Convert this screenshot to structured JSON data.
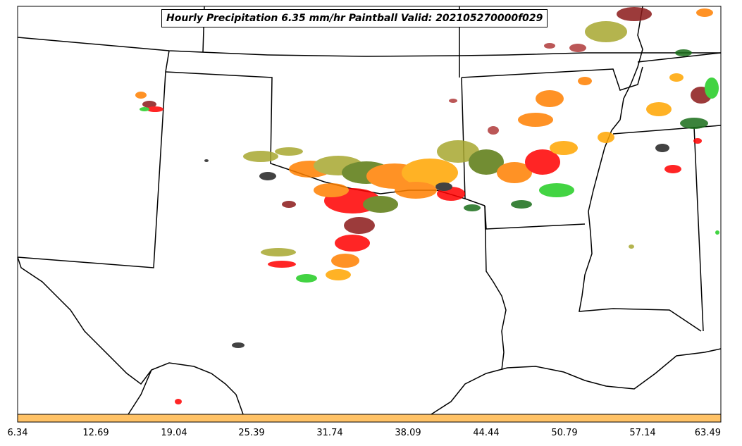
{
  "title": "Hourly Precipitation 6.35 mm/hr Paintball Valid: 202105270000f029",
  "colorbar": {
    "fill_color": "#ffc266",
    "ticks": [
      "6.34",
      "12.69",
      "19.04",
      "25.39",
      "31.74",
      "38.09",
      "44.44",
      "50.79",
      "57.14",
      "63.49"
    ]
  },
  "member_colors": {
    "red": "#ff0000",
    "dark_red": "#8b1a1a",
    "orange": "#ff8000",
    "gold": "#ffa500",
    "olive": "#a8a830",
    "dark_olive": "#5a7a10",
    "green": "#22cc22",
    "dark_green": "#1a6e1a",
    "black": "#222222",
    "brown_red": "#b03a3a"
  }
}
